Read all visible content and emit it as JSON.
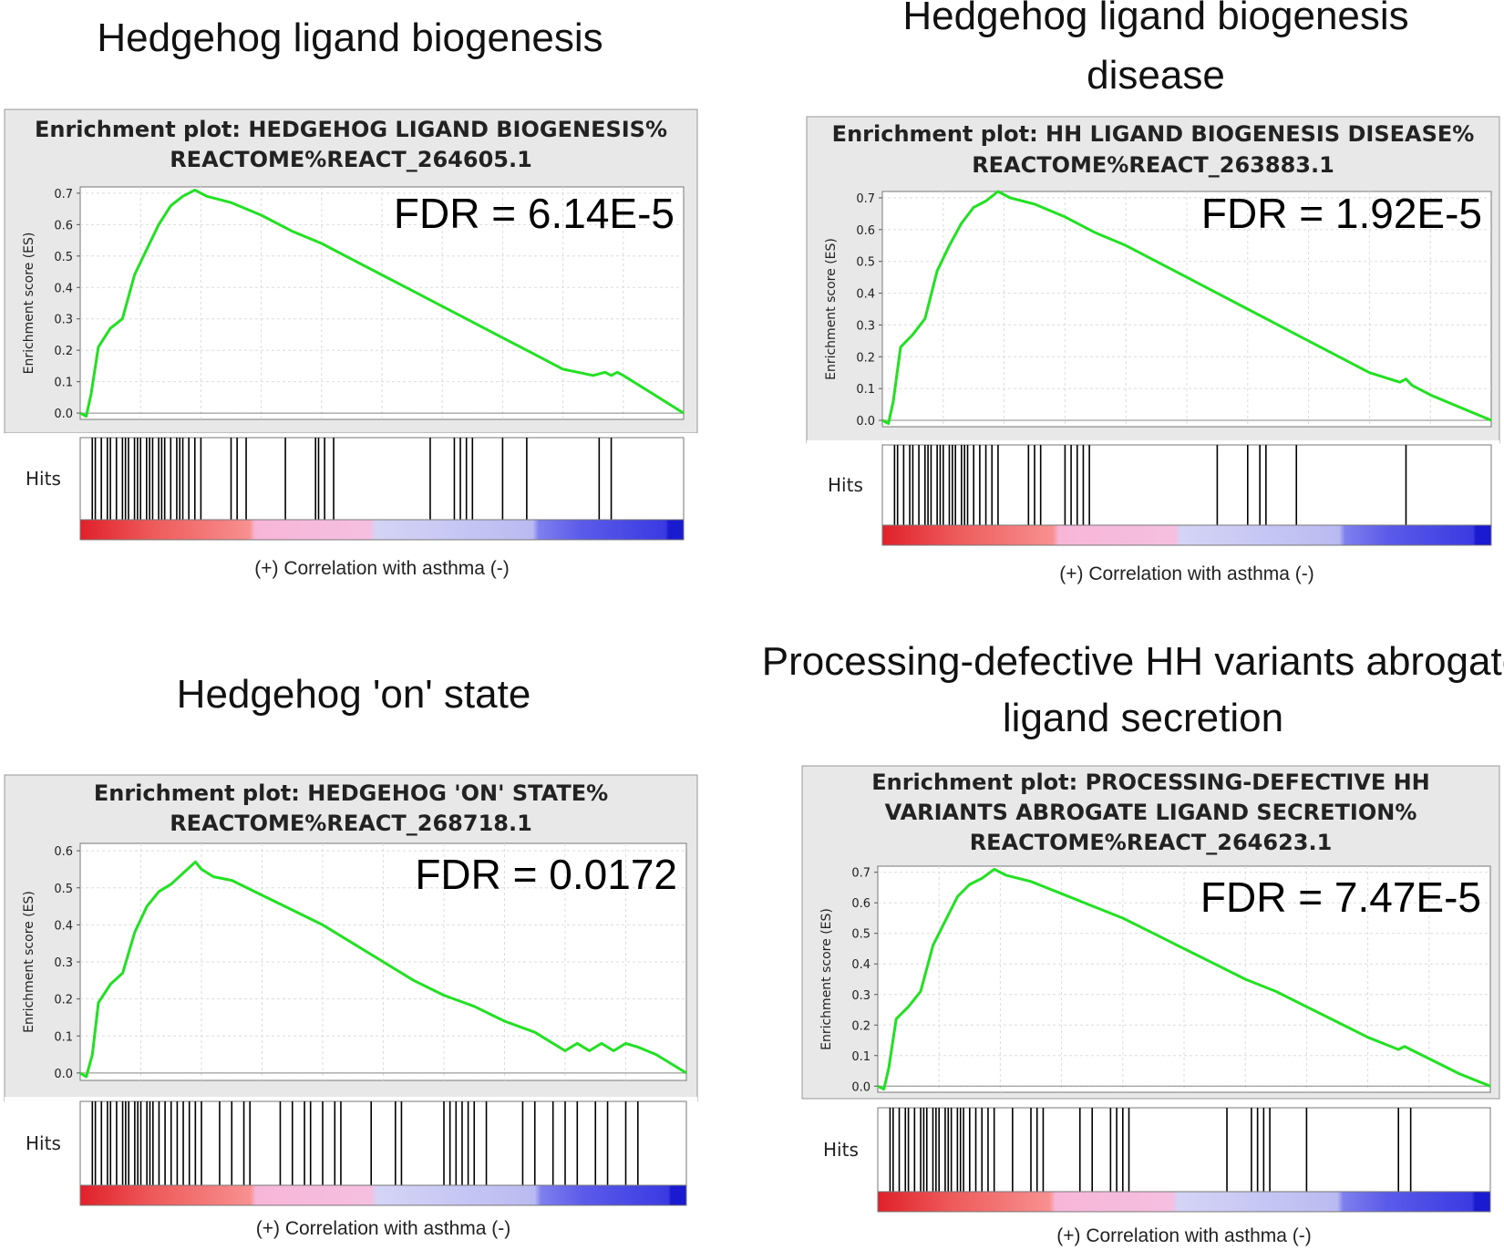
{
  "chart_data": [
    {
      "type": "line",
      "panel_title": "Hedgehog ligand biogenesis",
      "title": "Enrichment plot: HEDGEHOG LIGAND BIOGENESIS%",
      "subtitle": "REACTOME%REACT_264605.1",
      "annotation": "FDR = 6.14E-5",
      "ylabel": "Enrichment score (ES)",
      "xlabel": "(+) Correlation with asthma (-)",
      "hits_label": "Hits",
      "ylim": [
        0,
        0.7
      ],
      "yticks": [
        "0.0",
        "0.1",
        "0.2",
        "0.3",
        "0.4",
        "0.5",
        "0.6",
        "0.7"
      ],
      "xlim": [
        0,
        1
      ],
      "line_color": "#22e022",
      "x": [
        0,
        0.01,
        0.018,
        0.03,
        0.05,
        0.07,
        0.09,
        0.11,
        0.13,
        0.15,
        0.17,
        0.19,
        0.21,
        0.25,
        0.3,
        0.35,
        0.4,
        0.45,
        0.5,
        0.55,
        0.6,
        0.65,
        0.7,
        0.75,
        0.8,
        0.85,
        0.87,
        0.88,
        0.89,
        0.9,
        0.95,
        1.0
      ],
      "values": [
        0.0,
        -0.01,
        0.06,
        0.21,
        0.27,
        0.3,
        0.44,
        0.52,
        0.6,
        0.66,
        0.69,
        0.71,
        0.69,
        0.67,
        0.63,
        0.58,
        0.54,
        0.49,
        0.44,
        0.39,
        0.34,
        0.29,
        0.24,
        0.19,
        0.14,
        0.12,
        0.13,
        0.12,
        0.13,
        0.12,
        0.06,
        0.0
      ],
      "hits": [
        0.02,
        0.025,
        0.035,
        0.045,
        0.05,
        0.06,
        0.07,
        0.075,
        0.08,
        0.09,
        0.095,
        0.1,
        0.11,
        0.115,
        0.12,
        0.13,
        0.135,
        0.14,
        0.15,
        0.16,
        0.165,
        0.17,
        0.18,
        0.19,
        0.2,
        0.25,
        0.26,
        0.275,
        0.34,
        0.39,
        0.395,
        0.405,
        0.42,
        0.58,
        0.62,
        0.63,
        0.64,
        0.65,
        0.7,
        0.74,
        0.86,
        0.88
      ]
    },
    {
      "type": "line",
      "panel_title": "Hedgehog ligand biogenesis disease",
      "title": "Enrichment plot: HH LIGAND BIOGENESIS DISEASE%",
      "subtitle": "REACTOME%REACT_263883.1",
      "annotation": "FDR = 1.92E-5",
      "ylabel": "Enrichment score (ES)",
      "xlabel": "(+) Correlation with asthma (-)",
      "hits_label": "Hits",
      "ylim": [
        0,
        0.7
      ],
      "yticks": [
        "0.0",
        "0.1",
        "0.2",
        "0.3",
        "0.4",
        "0.5",
        "0.6",
        "0.7"
      ],
      "xlim": [
        0,
        1
      ],
      "line_color": "#22e022",
      "x": [
        0,
        0.01,
        0.018,
        0.03,
        0.05,
        0.07,
        0.09,
        0.11,
        0.13,
        0.15,
        0.17,
        0.19,
        0.21,
        0.25,
        0.3,
        0.35,
        0.4,
        0.45,
        0.5,
        0.55,
        0.6,
        0.65,
        0.7,
        0.75,
        0.8,
        0.85,
        0.86,
        0.87,
        0.9,
        0.95,
        1.0
      ],
      "values": [
        0.0,
        -0.01,
        0.06,
        0.23,
        0.27,
        0.32,
        0.47,
        0.55,
        0.62,
        0.67,
        0.69,
        0.72,
        0.7,
        0.68,
        0.64,
        0.59,
        0.55,
        0.5,
        0.45,
        0.4,
        0.35,
        0.3,
        0.25,
        0.2,
        0.15,
        0.12,
        0.13,
        0.11,
        0.08,
        0.04,
        0.0
      ],
      "hits": [
        0.02,
        0.025,
        0.035,
        0.045,
        0.05,
        0.06,
        0.07,
        0.075,
        0.08,
        0.09,
        0.095,
        0.1,
        0.11,
        0.115,
        0.12,
        0.13,
        0.135,
        0.14,
        0.15,
        0.16,
        0.17,
        0.18,
        0.19,
        0.24,
        0.25,
        0.26,
        0.3,
        0.31,
        0.32,
        0.33,
        0.34,
        0.55,
        0.6,
        0.62,
        0.63,
        0.68,
        0.86
      ]
    },
    {
      "type": "line",
      "panel_title": "Hedgehog 'on' state",
      "title": "Enrichment plot: HEDGEHOG 'ON' STATE%",
      "subtitle": "REACTOME%REACT_268718.1",
      "annotation": "FDR = 0.0172",
      "ylabel": "Enrichment score (ES)",
      "xlabel": "(+) Correlation with asthma (-)",
      "hits_label": "Hits",
      "ylim": [
        0,
        0.6
      ],
      "yticks": [
        "0.0",
        "0.1",
        "0.2",
        "0.3",
        "0.4",
        "0.5",
        "0.6"
      ],
      "xlim": [
        0,
        1
      ],
      "line_color": "#22e022",
      "x": [
        0,
        0.01,
        0.02,
        0.03,
        0.05,
        0.07,
        0.09,
        0.11,
        0.13,
        0.15,
        0.17,
        0.19,
        0.2,
        0.22,
        0.25,
        0.3,
        0.35,
        0.4,
        0.45,
        0.5,
        0.55,
        0.6,
        0.65,
        0.7,
        0.75,
        0.78,
        0.8,
        0.82,
        0.84,
        0.86,
        0.88,
        0.9,
        0.92,
        0.95,
        1.0
      ],
      "values": [
        0.0,
        -0.01,
        0.05,
        0.19,
        0.24,
        0.27,
        0.38,
        0.45,
        0.49,
        0.51,
        0.54,
        0.57,
        0.55,
        0.53,
        0.52,
        0.48,
        0.44,
        0.4,
        0.35,
        0.3,
        0.25,
        0.21,
        0.18,
        0.14,
        0.11,
        0.08,
        0.06,
        0.08,
        0.06,
        0.08,
        0.06,
        0.08,
        0.07,
        0.05,
        0.0
      ],
      "hits": [
        0.02,
        0.025,
        0.035,
        0.045,
        0.05,
        0.06,
        0.07,
        0.075,
        0.08,
        0.09,
        0.095,
        0.1,
        0.11,
        0.115,
        0.12,
        0.13,
        0.14,
        0.15,
        0.16,
        0.17,
        0.18,
        0.19,
        0.2,
        0.23,
        0.25,
        0.27,
        0.28,
        0.33,
        0.35,
        0.37,
        0.38,
        0.4,
        0.42,
        0.43,
        0.48,
        0.52,
        0.53,
        0.6,
        0.61,
        0.62,
        0.63,
        0.64,
        0.65,
        0.67,
        0.73,
        0.75,
        0.78,
        0.8,
        0.82,
        0.85,
        0.87,
        0.9,
        0.92
      ]
    },
    {
      "type": "line",
      "panel_title": "Processing-defective HH variants abrogate ligand secretion",
      "title": "Enrichment plot: PROCESSING-DEFECTIVE HH",
      "subtitle": "VARIANTS ABROGATE LIGAND SECRETION%",
      "subtitle2": "REACTOME%REACT_264623.1",
      "annotation": "FDR = 7.47E-5",
      "ylabel": "Enrichment score (ES)",
      "xlabel": "(+) Correlation with asthma (-)",
      "hits_label": "Hits",
      "ylim": [
        0,
        0.7
      ],
      "yticks": [
        "0.0",
        "0.1",
        "0.2",
        "0.3",
        "0.4",
        "0.5",
        "0.6",
        "0.7"
      ],
      "xlim": [
        0,
        1
      ],
      "line_color": "#22e022",
      "x": [
        0,
        0.01,
        0.018,
        0.03,
        0.05,
        0.07,
        0.09,
        0.11,
        0.13,
        0.15,
        0.17,
        0.19,
        0.21,
        0.25,
        0.3,
        0.35,
        0.4,
        0.45,
        0.5,
        0.55,
        0.6,
        0.65,
        0.7,
        0.75,
        0.8,
        0.85,
        0.86,
        0.87,
        0.9,
        0.95,
        1.0
      ],
      "values": [
        0.0,
        -0.01,
        0.06,
        0.22,
        0.26,
        0.31,
        0.46,
        0.54,
        0.62,
        0.66,
        0.68,
        0.71,
        0.69,
        0.67,
        0.63,
        0.59,
        0.55,
        0.5,
        0.45,
        0.4,
        0.35,
        0.31,
        0.26,
        0.21,
        0.16,
        0.12,
        0.13,
        0.12,
        0.09,
        0.04,
        0.0
      ],
      "hits": [
        0.02,
        0.025,
        0.035,
        0.045,
        0.05,
        0.06,
        0.07,
        0.075,
        0.08,
        0.09,
        0.095,
        0.1,
        0.11,
        0.115,
        0.12,
        0.13,
        0.135,
        0.14,
        0.15,
        0.16,
        0.17,
        0.18,
        0.19,
        0.22,
        0.25,
        0.26,
        0.27,
        0.33,
        0.35,
        0.38,
        0.39,
        0.4,
        0.41,
        0.57,
        0.61,
        0.62,
        0.63,
        0.64,
        0.7,
        0.85,
        0.87
      ]
    }
  ]
}
